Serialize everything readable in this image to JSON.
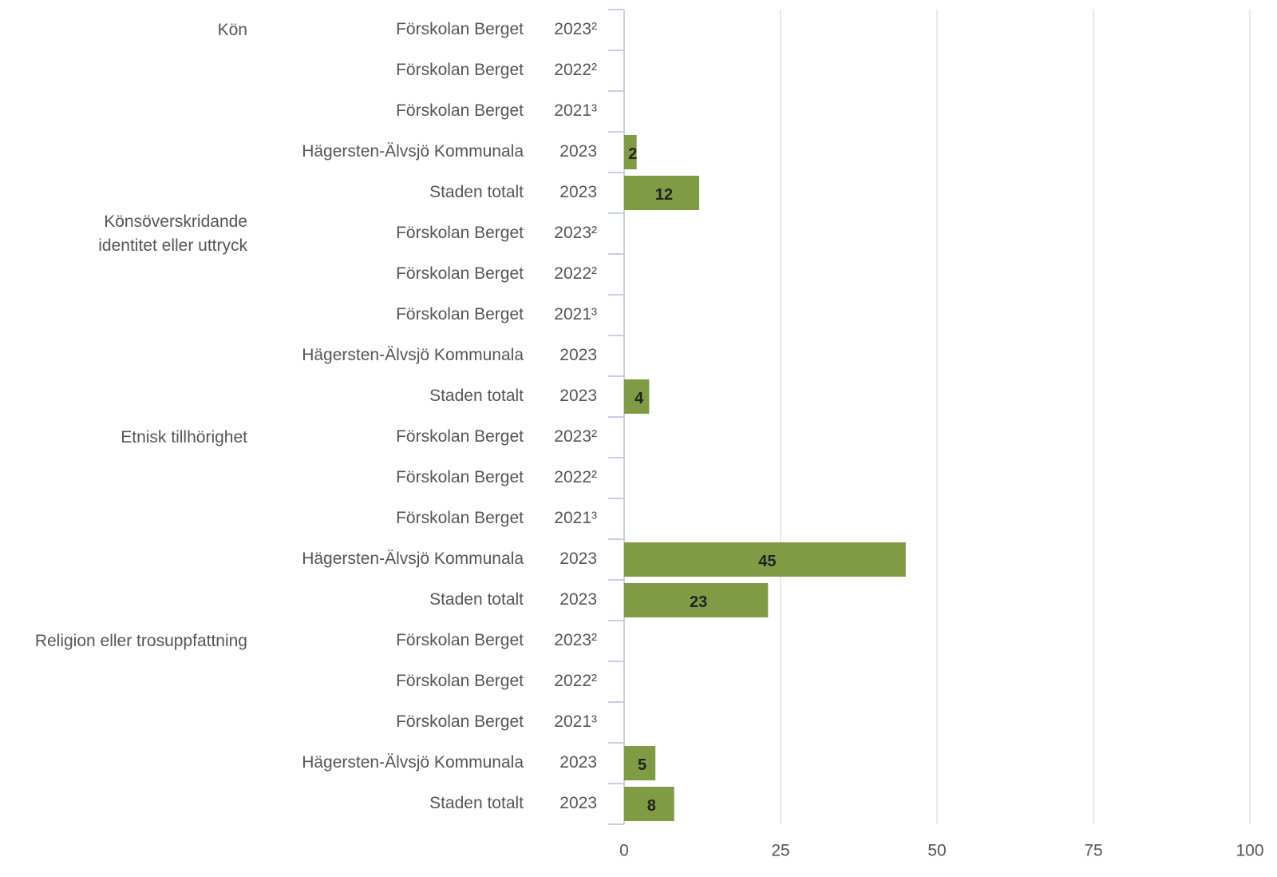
{
  "chart_data": {
    "type": "bar",
    "orientation": "horizontal",
    "color": "#7f9c45",
    "categories": [
      [
        "Kön",
        "Förskolan Berget",
        "2023²"
      ],
      [
        null,
        "Förskolan Berget",
        "2022²"
      ],
      [
        null,
        "Förskolan Berget",
        "2021³"
      ],
      [
        null,
        "Hägersten-Älvsjö Kommunala",
        "2023"
      ],
      [
        null,
        "Staden totalt",
        "2023"
      ],
      [
        "Könsöverskridande\nidentitet eller uttryck",
        "Förskolan Berget",
        "2023²"
      ],
      [
        null,
        "Förskolan Berget",
        "2022²"
      ],
      [
        null,
        "Förskolan Berget",
        "2021³"
      ],
      [
        null,
        "Hägersten-Älvsjö Kommunala",
        "2023"
      ],
      [
        null,
        "Staden totalt",
        "2023"
      ],
      [
        "Etnisk tillhörighet",
        "Förskolan Berget",
        "2023²"
      ],
      [
        null,
        "Förskolan Berget",
        "2022²"
      ],
      [
        null,
        "Förskolan Berget",
        "2021³"
      ],
      [
        null,
        "Hägersten-Älvsjö Kommunala",
        "2023"
      ],
      [
        null,
        "Staden totalt",
        "2023"
      ],
      [
        "Religion eller trosuppfattning",
        "Förskolan Berget",
        "2023²"
      ],
      [
        null,
        "Förskolan Berget",
        "2022²"
      ],
      [
        null,
        "Förskolan Berget",
        "2021³"
      ],
      [
        null,
        "Hägersten-Älvsjö Kommunala",
        "2023"
      ],
      [
        null,
        "Staden totalt",
        "2023"
      ]
    ],
    "values": [
      null,
      null,
      null,
      2,
      12,
      null,
      null,
      null,
      null,
      4,
      null,
      null,
      null,
      45,
      23,
      null,
      null,
      null,
      5,
      8
    ],
    "xlim": [
      0,
      100
    ],
    "xticks": [
      0,
      25,
      50,
      75,
      100
    ],
    "grid": true
  }
}
